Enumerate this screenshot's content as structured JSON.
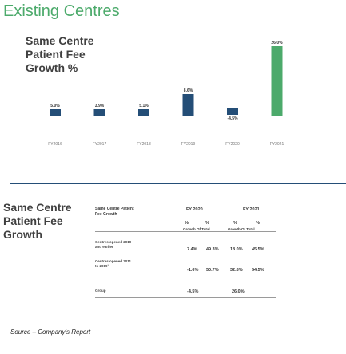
{
  "page": {
    "title": "Existing Centres",
    "source": "Source – Company's Report"
  },
  "chart_heading": [
    "Same Centre",
    "Patient Fee",
    "Growth %"
  ],
  "chart_data": {
    "type": "bar",
    "title": "",
    "xlabel": "",
    "ylabel": "",
    "categories": [
      "FY2016",
      "FY2017",
      "FY2018",
      "FY2019",
      "FY2020",
      "FY2021"
    ],
    "values": [
      5.0,
      3.9,
      5.1,
      8.6,
      -4.5,
      26.0
    ],
    "data_labels": [
      "5.0%",
      "3.9%",
      "5.1%",
      "8.6%",
      "-4.5%",
      "26.0%"
    ],
    "colors": [
      "#244e77",
      "#244e77",
      "#244e77",
      "#244e77",
      "#244e77",
      "#4caa6b"
    ],
    "ylim": [
      -5,
      27
    ],
    "grid": false,
    "legend": "none"
  },
  "table": {
    "heading": [
      "Same Centre",
      "Patient Fee",
      "Growth"
    ],
    "col_header": [
      "Same Centre Patient",
      "Fee Growth"
    ],
    "years": [
      "FY 2020",
      "FY 2021"
    ],
    "pct_marks": [
      "%",
      "%",
      "%",
      "%"
    ],
    "sub_headers": [
      "Growth Of Total",
      "Growth Of Total"
    ],
    "rows": [
      {
        "label": [
          "Centres opened 2010",
          "and earlier"
        ],
        "values": [
          "7.4%",
          "49.3%",
          "18.0%",
          "45.5%"
        ]
      },
      {
        "label": [
          "Centres opened 2011",
          "to 2019¹"
        ],
        "values": [
          "-1.6%",
          "50.7%",
          "32.8%",
          "54.5%"
        ]
      },
      {
        "label": [
          "Group"
        ],
        "values": [
          "-4.5%",
          "26.0%"
        ]
      }
    ]
  }
}
